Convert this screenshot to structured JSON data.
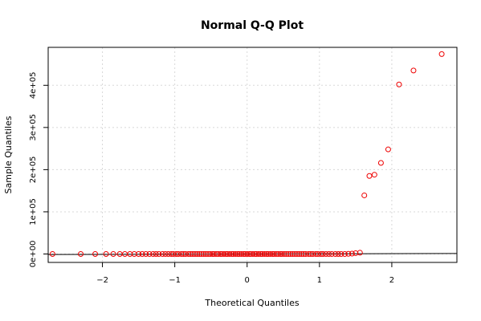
{
  "chart_data": {
    "type": "scatter",
    "title": "Normal Q-Q Plot",
    "xlabel": "Theoretical Quantiles",
    "ylabel": "Sample Quantiles",
    "xlim": [
      -2.75,
      2.9
    ],
    "ylim": [
      -20000,
      490000
    ],
    "x_ticks": [
      -2,
      -1,
      0,
      1,
      2
    ],
    "x_tick_labels": [
      "−2",
      "−1",
      "0",
      "1",
      "2"
    ],
    "y_ticks": [
      0,
      100000,
      200000,
      300000,
      400000
    ],
    "y_tick_labels": [
      "0e+00",
      "1e+05",
      "2e+05",
      "3e+05",
      "4e+05"
    ],
    "grid": true,
    "point_color": "#ee0000",
    "line_color": "#000000",
    "qq_line": [
      [
        -2.75,
        -1200
      ],
      [
        2.9,
        1200
      ]
    ],
    "series": [
      {
        "x": [
          -2.69,
          -2.3,
          -2.1,
          -1.95,
          -1.85,
          -1.76,
          -1.69,
          -1.62,
          -1.56,
          -1.5,
          -1.45,
          -1.4,
          -1.35,
          -1.3,
          -1.26,
          -1.22,
          -1.17,
          -1.13,
          -1.09,
          -1.05,
          -1.02,
          -0.98,
          -0.95,
          -0.91,
          -0.88,
          -0.85,
          -0.81,
          -0.78,
          -0.75,
          -0.72,
          -0.69,
          -0.66,
          -0.63,
          -0.6,
          -0.57,
          -0.54,
          -0.51,
          -0.48,
          -0.46,
          -0.43,
          -0.4,
          -0.37,
          -0.35,
          -0.32,
          -0.29,
          -0.27,
          -0.24,
          -0.21,
          -0.19,
          -0.16,
          -0.13,
          -0.11,
          -0.08,
          -0.05,
          -0.03,
          0.0,
          0.03,
          0.05,
          0.08,
          0.11,
          0.13,
          0.16,
          0.19,
          0.21,
          0.24,
          0.27,
          0.29,
          0.32,
          0.35,
          0.37,
          0.4,
          0.43,
          0.46,
          0.48,
          0.51,
          0.54,
          0.57,
          0.6,
          0.63,
          0.66,
          0.69,
          0.72,
          0.75,
          0.78,
          0.81,
          0.85,
          0.88,
          0.91,
          0.95,
          0.98,
          1.02,
          1.05,
          1.09,
          1.13,
          1.17,
          1.22,
          1.26,
          1.3,
          1.35,
          1.4,
          1.45,
          1.5,
          1.56,
          1.62,
          1.69,
          1.76,
          1.85,
          1.95,
          2.1,
          2.3,
          2.69
        ],
        "y": [
          0,
          0,
          0,
          0,
          0,
          0,
          0,
          0,
          0,
          0,
          0,
          0,
          0,
          0,
          0,
          0,
          0,
          0,
          0,
          0,
          0,
          0,
          0,
          0,
          0,
          0,
          0,
          0,
          0,
          0,
          0,
          0,
          0,
          0,
          0,
          0,
          0,
          0,
          0,
          0,
          0,
          0,
          0,
          0,
          0,
          0,
          0,
          0,
          0,
          0,
          0,
          0,
          0,
          0,
          0,
          0,
          0,
          0,
          0,
          0,
          0,
          0,
          0,
          0,
          0,
          0,
          0,
          0,
          0,
          0,
          0,
          0,
          0,
          0,
          0,
          0,
          0,
          0,
          0,
          0,
          0,
          0,
          0,
          0,
          0,
          0,
          0,
          0,
          0,
          0,
          0,
          0,
          0,
          0,
          0,
          0,
          0,
          0,
          0,
          500,
          1000,
          2000,
          3000,
          139000,
          185000,
          188000,
          216000,
          248000,
          402000,
          435000,
          474000
        ]
      }
    ]
  }
}
